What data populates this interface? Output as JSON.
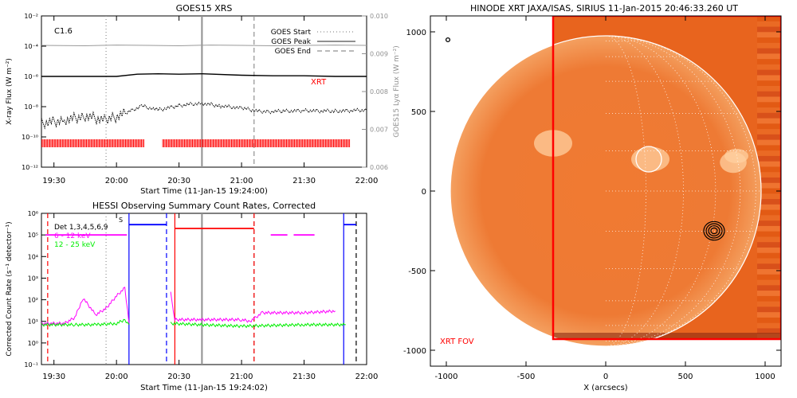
{
  "chart_data": [
    {
      "type": "line",
      "title": "GOES15 XRS",
      "xlabel": "Start Time (11-Jan-15 19:24:00)",
      "ylabel": "X-ray Flux (W m⁻²)",
      "ylabel_right": "GOES15 Lyα Flux (W m⁻²)",
      "x_range": [
        "19:24",
        "22:00"
      ],
      "x_ticks": [
        "19:30",
        "20:00",
        "20:30",
        "21:00",
        "21:30",
        "22:00"
      ],
      "y_scale": "log",
      "ylim": [
        1e-12,
        0.01
      ],
      "y_ticks": [
        "10⁻¹²",
        "10⁻¹⁰",
        "10⁻⁸",
        "10⁻⁶",
        "10⁻⁴",
        "10⁻²"
      ],
      "ylim_right": [
        0.006,
        0.01
      ],
      "y_ticks_right": [
        "0.006",
        "0.007",
        "0.008",
        "0.009",
        "0.010"
      ],
      "class_label": "C1.6",
      "instrument_label": "XRT",
      "legend": [
        {
          "label": "GOES Start",
          "style": "dotted",
          "color": "#909090"
        },
        {
          "label": "GOES Peak",
          "style": "solid",
          "color": "#909090"
        },
        {
          "label": "GOES End",
          "style": "dashed",
          "color": "#909090"
        }
      ],
      "event_times": {
        "start": "19:55",
        "peak": "20:41",
        "end": "21:06"
      },
      "series": [
        {
          "name": "Lyα",
          "color": "#9a9a9a",
          "x": [
            "19:24",
            "19:45",
            "20:00",
            "20:15",
            "20:30",
            "20:45",
            "21:00",
            "21:15",
            "21:30",
            "21:45",
            "22:00"
          ],
          "values": [
            0.00922,
            0.00921,
            0.00923,
            0.00922,
            0.00921,
            0.00923,
            0.00922,
            0.00921,
            0.00922,
            0.00923,
            0.00922
          ]
        },
        {
          "name": "1-8 Å",
          "color": "#000000",
          "x": [
            "19:24",
            "19:40",
            "20:00",
            "20:10",
            "20:20",
            "20:30",
            "20:41",
            "21:00",
            "21:15",
            "21:30",
            "21:45",
            "22:00"
          ],
          "values": [
            1e-06,
            1e-06,
            1e-06,
            1.4e-06,
            1.5e-06,
            1.4e-06,
            1.5e-06,
            1.2e-06,
            1.1e-06,
            1.1e-06,
            1e-06,
            1e-06
          ]
        },
        {
          "name": "0.5-4 Å",
          "color": "#000000",
          "style": "noisy",
          "x": [
            "19:24",
            "19:35",
            "19:45",
            "19:55",
            "20:05",
            "20:12",
            "20:20",
            "20:30",
            "20:41",
            "20:50",
            "21:00",
            "21:10",
            "21:20",
            "21:30",
            "21:45",
            "22:00"
          ],
          "values": [
            8e-10,
            1.3e-09,
            2.5e-09,
            1.2e-09,
            4e-09,
            1.1e-08,
            6e-09,
            1.2e-08,
            1.7e-08,
            1.1e-08,
            8e-09,
            4.5e-09,
            5e-09,
            5.5e-09,
            5e-09,
            6e-09
          ]
        }
      ],
      "xrt_coverage": [
        {
          "from": "19:24",
          "to": "20:13"
        },
        {
          "from": "20:22",
          "to": "21:52"
        }
      ]
    },
    {
      "type": "line",
      "title": "HESSI Observing Summary Count Rates, Corrected",
      "xlabel": "Start Time (11-Jan-15 19:24:02)",
      "ylabel": "Corrected Count Rate (s⁻¹ detector⁻¹)",
      "x_range": [
        "19:24",
        "22:00"
      ],
      "x_ticks": [
        "19:30",
        "20:00",
        "20:30",
        "21:00",
        "21:30",
        "22:00"
      ],
      "y_scale": "log",
      "ylim": [
        0.1,
        1000000.0
      ],
      "y_ticks": [
        "10⁻¹",
        "10⁰",
        "10¹",
        "10²",
        "10³",
        "10⁴",
        "10⁵",
        "10⁶"
      ],
      "legend": [
        {
          "label": "Det 1,3,4,5,6,9",
          "color": "#000000"
        },
        {
          "label": "6 - 12 keV",
          "color": "#ff00ff"
        },
        {
          "label": "12 - 25 keV",
          "color": "#00ee00"
        }
      ],
      "s_label": "S",
      "event_times": {
        "start": "19:55",
        "peak": "20:41",
        "end": "21:06"
      },
      "series": [
        {
          "name": "6 - 12 keV",
          "color": "#ff00ff",
          "x": [
            "19:24",
            "19:35",
            "19:40",
            "19:44",
            "19:50",
            "19:55",
            "20:00",
            "20:04",
            "20:06",
            "20:25",
            "20:26",
            "20:28",
            "20:40",
            "21:00",
            "21:04",
            "21:10",
            "21:30",
            "21:45",
            "21:50"
          ],
          "values": [
            8,
            8,
            15,
            120,
            20,
            40,
            150,
            350,
            8,
            null,
            200,
            12,
            12,
            12,
            10,
            25,
            25,
            30,
            null
          ]
        },
        {
          "name": "12 - 25 keV",
          "color": "#00ee00",
          "x": [
            "19:24",
            "19:40",
            "19:50",
            "20:00",
            "20:04",
            "20:06",
            "20:25",
            "20:26",
            "20:40",
            "21:00",
            "21:30",
            "21:50"
          ],
          "values": [
            7,
            7,
            7,
            8,
            12,
            7,
            null,
            8,
            7,
            6,
            7,
            7
          ]
        }
      ],
      "attenuator_state": [
        {
          "from": "19:26",
          "to": "20:05",
          "level": 100000.0,
          "color": "#ff00ff",
          "style": "solid"
        },
        {
          "from": "20:06",
          "to": "20:24",
          "level": 300000.0,
          "color": "#0000ff",
          "style": "solid"
        },
        {
          "from": "20:28",
          "to": "21:06",
          "level": 200000.0,
          "color": "#ff0000",
          "style": "solid"
        },
        {
          "from": "21:14",
          "to": "21:22",
          "level": 100000.0,
          "color": "#ff00ff",
          "style": "solid"
        },
        {
          "from": "21:25",
          "to": "21:35",
          "level": 100000.0,
          "color": "#ff00ff",
          "style": "solid"
        },
        {
          "from": "21:49",
          "to": "21:55",
          "level": 300000.0,
          "color": "#0000ff",
          "style": "solid"
        }
      ],
      "night_markers": [
        {
          "time": "19:27",
          "color": "#ff0000",
          "style": "dashed"
        },
        {
          "time": "20:06",
          "color": "#0000ff",
          "style": "solid"
        },
        {
          "time": "20:24",
          "color": "#0000ff",
          "style": "dashed"
        },
        {
          "time": "20:28",
          "color": "#ff0000",
          "style": "solid"
        },
        {
          "time": "21:06",
          "color": "#ff0000",
          "style": "dashed"
        },
        {
          "time": "21:49",
          "color": "#0000ff",
          "style": "solid"
        },
        {
          "time": "21:55",
          "color": "#000000",
          "style": "dashed"
        }
      ]
    },
    {
      "type": "heatmap",
      "title": "HINODE XRT JAXA/ISAS, SIRIUS 11-Jan-2015 20:46:33.260 UT",
      "xlabel": "X (arcsecs)",
      "ylabel": "",
      "xlim": [
        -1100,
        1100
      ],
      "ylim": [
        -1100,
        1100
      ],
      "x_ticks": [
        "-1000",
        "-500",
        "0",
        "500",
        "1000"
      ],
      "y_ticks": [
        "-1000",
        "-500",
        "0",
        "500",
        "1000"
      ],
      "fov_label": "XRT FOV",
      "fov_box": {
        "x_min": -330,
        "y_min": -930,
        "x_max": 1100,
        "y_max": 1100
      },
      "solar_radius": 975,
      "grid": true,
      "colormap": "red-orange",
      "marker_circles": [
        {
          "x": 270,
          "y": 200,
          "r": 80,
          "color": "#ffffff"
        },
        {
          "x": -990,
          "y": 950,
          "r": 12,
          "color": "#000000"
        }
      ],
      "contour_center": {
        "x": 680,
        "y": -250
      }
    }
  ]
}
